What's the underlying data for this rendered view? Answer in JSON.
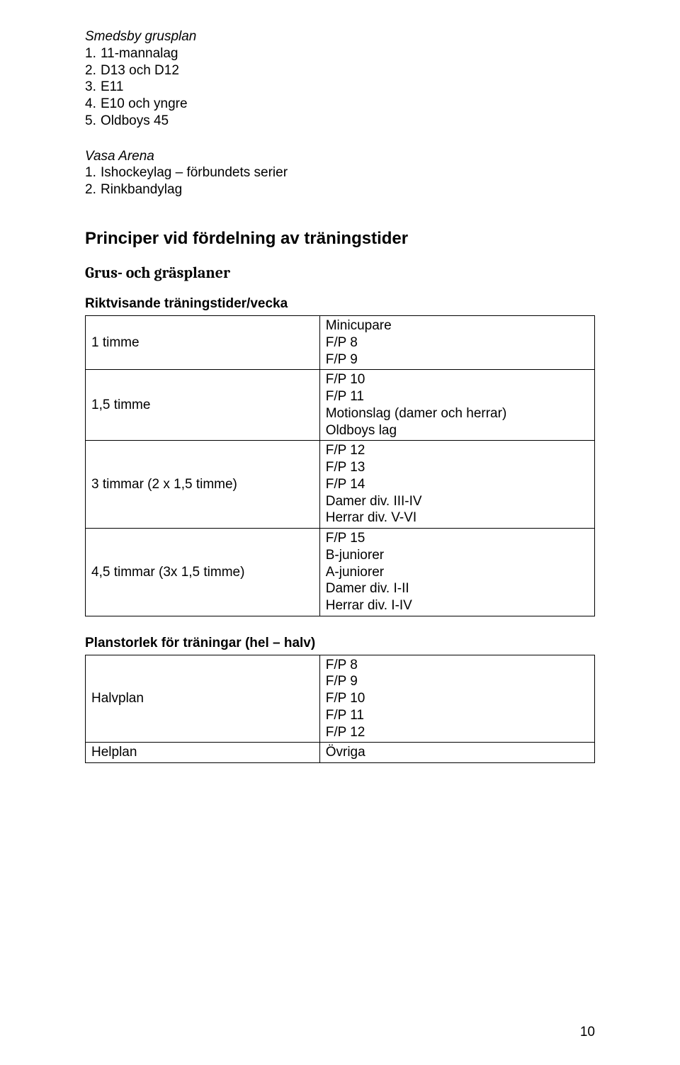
{
  "section1": {
    "heading": "Smedsby grusplan",
    "items": [
      {
        "n": "1.",
        "text": "11-mannalag"
      },
      {
        "n": "2.",
        "text": "D13 och D12"
      },
      {
        "n": "3.",
        "text": "E11"
      },
      {
        "n": "4.",
        "text": "E10 och yngre"
      },
      {
        "n": "5.",
        "text": "Oldboys 45"
      }
    ]
  },
  "section2": {
    "heading": "Vasa Arena",
    "items": [
      {
        "n": "1.",
        "text": "Ishockeylag – förbundets serier"
      },
      {
        "n": "2.",
        "text": "Rinkbandylag"
      }
    ]
  },
  "main_heading": "Principer vid fördelning av träningstider",
  "sub_heading": "Grus- och gräsplaner",
  "table1": {
    "title": "Riktvisande träningstider/vecka",
    "rows": [
      {
        "left": "1 timme",
        "right": [
          "Minicupare",
          "F/P 8",
          "F/P 9"
        ]
      },
      {
        "left": "1,5 timme",
        "right": [
          "F/P 10",
          "F/P 11",
          "Motionslag (damer och herrar)",
          "Oldboys lag"
        ]
      },
      {
        "left": "3 timmar (2 x 1,5 timme)",
        "right": [
          "F/P 12",
          "F/P 13",
          "F/P 14",
          "Damer div. III-IV",
          "Herrar div. V-VI"
        ]
      },
      {
        "left": "4,5 timmar (3x 1,5 timme)",
        "right": [
          "F/P 15",
          "B-juniorer",
          "A-juniorer",
          "Damer div. I-II",
          "Herrar div. I-IV"
        ]
      }
    ]
  },
  "table2": {
    "title": "Planstorlek för träningar (hel – halv)",
    "rows": [
      {
        "left": "Halvplan",
        "right": [
          "F/P 8",
          "F/P 9",
          "F/P 10",
          "F/P 11",
          "F/P 12"
        ]
      },
      {
        "left": "Helplan",
        "right": [
          "Övriga"
        ]
      }
    ]
  },
  "page_number": "10"
}
